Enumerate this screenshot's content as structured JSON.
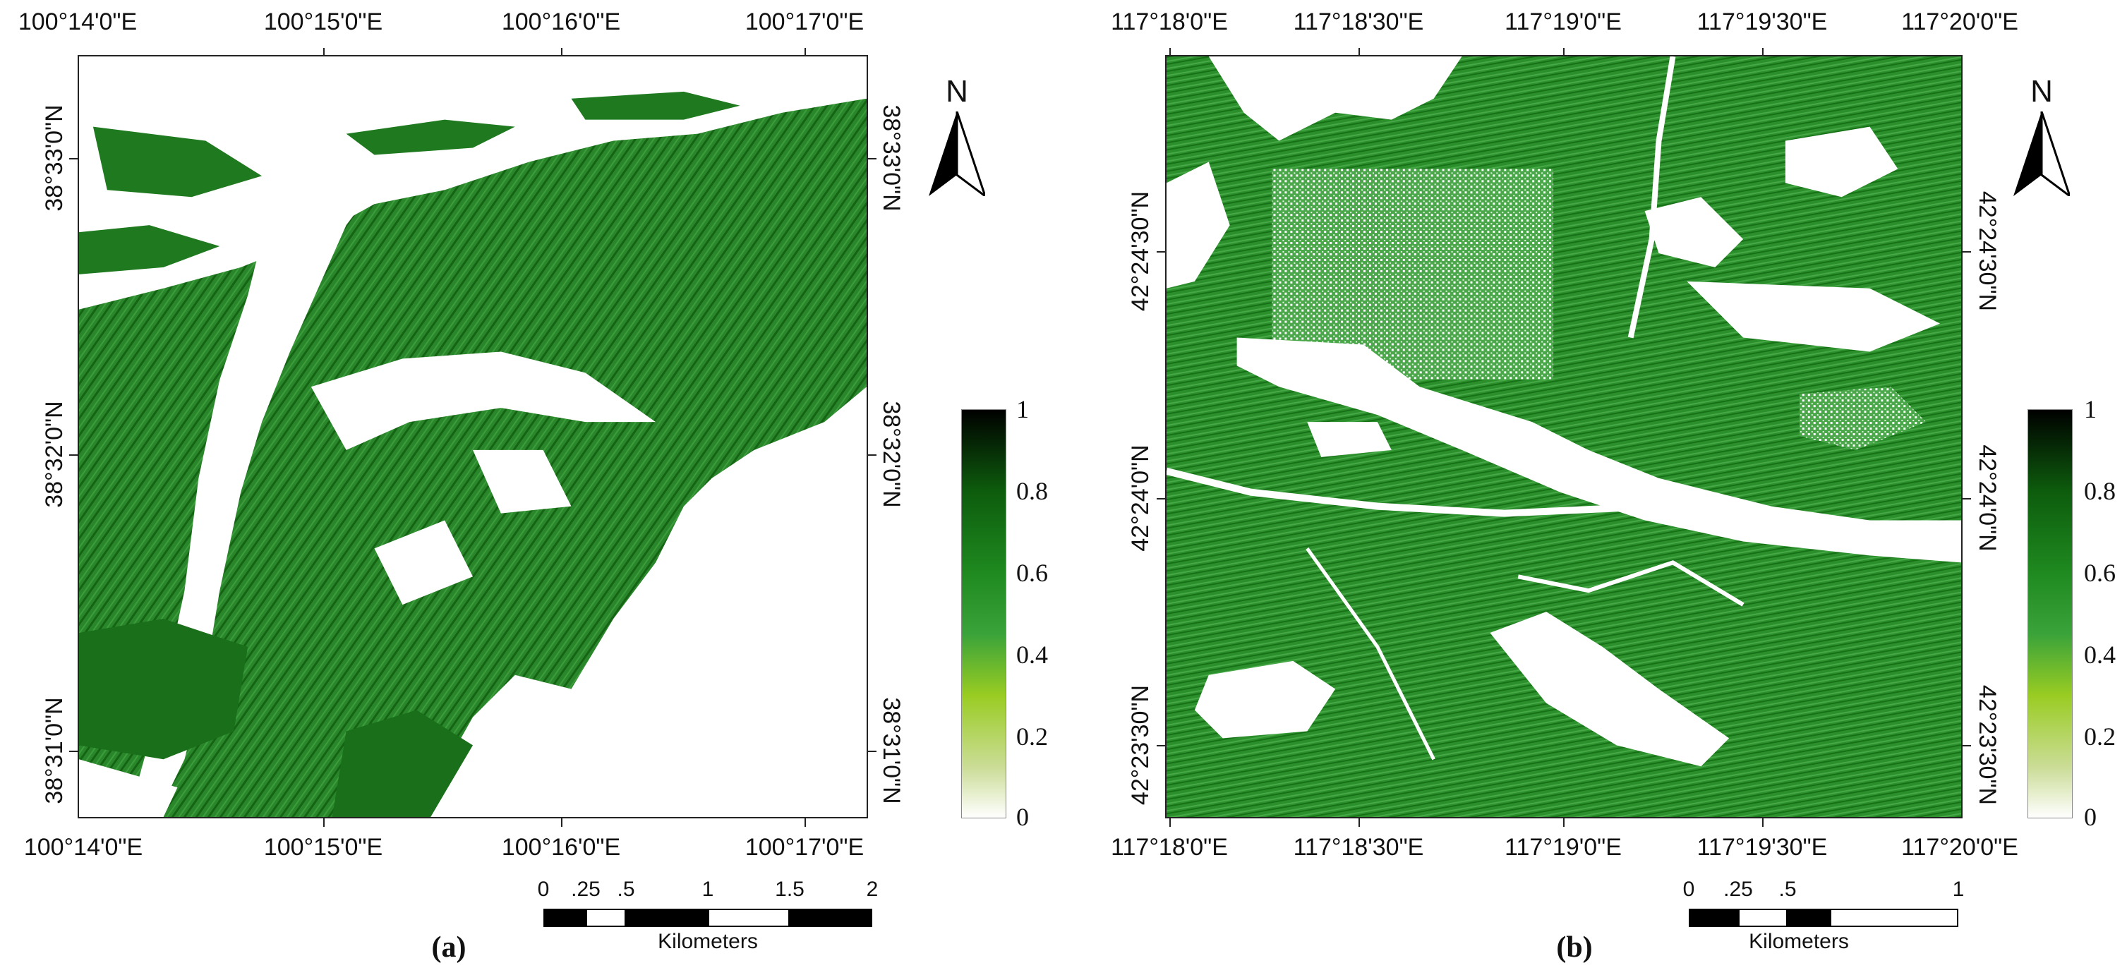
{
  "panels": [
    {
      "id": "a",
      "label": "(a)",
      "top_ticks": [
        "100°14'0\"E",
        "100°15'0\"E",
        "100°16'0\"E",
        "100°17'0\"E"
      ],
      "bottom_ticks": [
        "100°14'0\"E",
        "100°15'0\"E",
        "100°16'0\"E",
        "100°17'0\"E"
      ],
      "left_ticks": [
        "38°33'0\"N",
        "38°32'0\"N",
        "38°31'0\"N"
      ],
      "right_ticks": [
        "38°33'0\"N",
        "38°32'0\"N",
        "38°31'0\"N"
      ],
      "north_label": "N",
      "colorbar_labels": [
        "1",
        "0.8",
        "0.6",
        "0.4",
        "0.2",
        "0"
      ],
      "scale_numbers": [
        "0",
        ".25",
        ".5",
        "1",
        "1.5",
        "2"
      ],
      "scale_unit": "Kilometers"
    },
    {
      "id": "b",
      "label": "(b)",
      "top_ticks": [
        "117°18'0\"E",
        "117°18'30\"E",
        "117°19'0\"E",
        "117°19'30\"E",
        "117°20'0\"E"
      ],
      "bottom_ticks": [
        "117°18'0\"E",
        "117°18'30\"E",
        "117°19'0\"E",
        "117°19'30\"E",
        "117°20'0\"E"
      ],
      "left_ticks": [
        "42°24'30\"N",
        "42°24'0\"N",
        "42°23'30\"N"
      ],
      "right_ticks": [
        "42°24'30\"N",
        "42°24'0\"N",
        "42°23'30\"N"
      ],
      "north_label": "N",
      "colorbar_labels": [
        "1",
        "0.8",
        "0.6",
        "0.4",
        "0.2",
        "0"
      ],
      "scale_numbers": [
        "0",
        ".25",
        ".5",
        "1"
      ],
      "scale_unit": "Kilometers"
    }
  ],
  "colors": {
    "vegetation_dark": "#0d5c0d",
    "vegetation_mid": "#2e8b2e",
    "vegetation_light": "#5fb34a",
    "background": "#ffffff"
  }
}
